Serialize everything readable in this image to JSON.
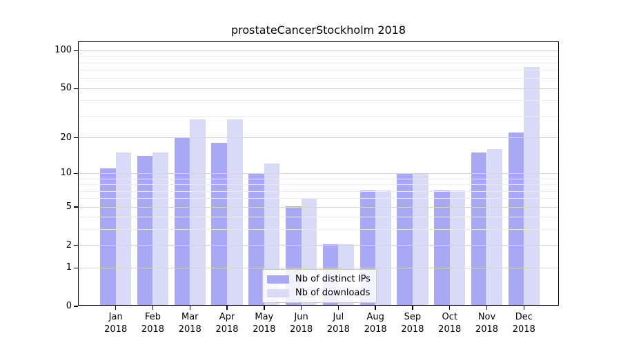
{
  "title": "prostateCancerStockholm 2018",
  "colors": {
    "ips_bar": "#a8a8f4",
    "downloads_bar": "#d9d9f8",
    "grid_major": "#d4d4d4",
    "grid_minor": "#ececec",
    "axis": "#000000",
    "legend_border": "#c9c9c9"
  },
  "chart_data": {
    "type": "bar",
    "title": "prostateCancerStockholm 2018",
    "y_scale": "log10(1+x)",
    "grid": "horizontal",
    "legend_position": "bottom-center",
    "ylim": [
      0,
      117
    ],
    "yticks": [
      0,
      1,
      2,
      5,
      10,
      20,
      50,
      100
    ],
    "minor_gridlines": [
      3,
      4,
      6,
      7,
      8,
      9,
      30,
      40,
      60,
      70,
      80,
      90
    ],
    "categories": [
      {
        "month": "Jan",
        "year": "2018"
      },
      {
        "month": "Feb",
        "year": "2018"
      },
      {
        "month": "Mar",
        "year": "2018"
      },
      {
        "month": "Apr",
        "year": "2018"
      },
      {
        "month": "May",
        "year": "2018"
      },
      {
        "month": "Jun",
        "year": "2018"
      },
      {
        "month": "Jul",
        "year": "2018"
      },
      {
        "month": "Aug",
        "year": "2018"
      },
      {
        "month": "Sep",
        "year": "2018"
      },
      {
        "month": "Oct",
        "year": "2018"
      },
      {
        "month": "Nov",
        "year": "2018"
      },
      {
        "month": "Dec",
        "year": "2018"
      }
    ],
    "series": [
      {
        "name": "Nb of distinct IPs",
        "color": "#a8a8f4",
        "values": [
          11,
          14,
          20,
          18,
          10,
          5,
          2,
          7,
          10,
          7,
          15,
          22
        ]
      },
      {
        "name": "Nb of downloads",
        "color": "#d9d9f8",
        "values": [
          15,
          15,
          28,
          28,
          12,
          6,
          2,
          7,
          10,
          7,
          16,
          74
        ]
      }
    ]
  }
}
